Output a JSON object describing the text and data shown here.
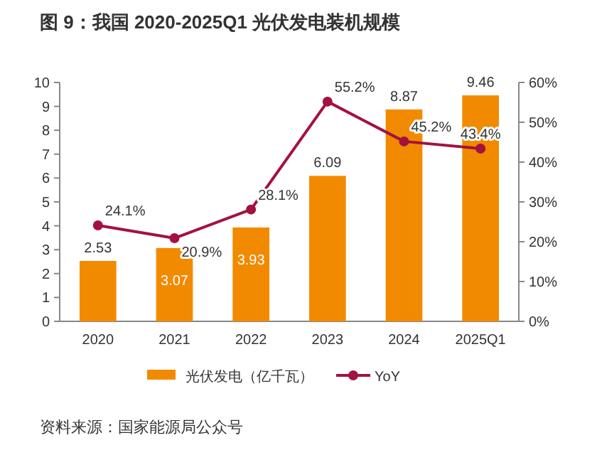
{
  "chart_data": {
    "type": "bar",
    "title": "图 9：我国 2020-2025Q1 光伏发电装机规模",
    "annotations": [
      "资料来源：国家能源局公众号"
    ],
    "categories": [
      "2020",
      "2021",
      "2022",
      "2023",
      "2024",
      "2025Q1"
    ],
    "series": [
      {
        "name": "光伏发电（亿千瓦）",
        "color": "#f28a00",
        "values": [
          2.53,
          3.07,
          3.93,
          6.09,
          8.87,
          9.46
        ],
        "value_labels": [
          "2.53",
          "3.07",
          "3.93",
          "6.09",
          "8.87",
          "9.46"
        ]
      },
      {
        "name": "YoY",
        "type": "line",
        "axis": "y2",
        "color": "#a3123f",
        "marker": "circle",
        "values": [
          24.1,
          20.9,
          28.1,
          55.2,
          45.2,
          43.4
        ],
        "value_labels": [
          "24.1%",
          "20.9%",
          "28.1%",
          "55.2%",
          "45.2%",
          "43.4%"
        ]
      }
    ],
    "ylim": [
      0,
      10
    ],
    "yticks": [
      0,
      1,
      2,
      3,
      4,
      5,
      6,
      7,
      8,
      9,
      10
    ],
    "y2lim": [
      0,
      60
    ],
    "y2ticks": [
      {
        "value": 0,
        "label": "0%"
      },
      {
        "value": 10,
        "label": "10%"
      },
      {
        "value": 20,
        "label": "20%"
      },
      {
        "value": 30,
        "label": "30%"
      },
      {
        "value": 40,
        "label": "40%"
      },
      {
        "value": 50,
        "label": "50%"
      },
      {
        "value": 60,
        "label": "60%"
      }
    ],
    "legend": "bottom"
  }
}
